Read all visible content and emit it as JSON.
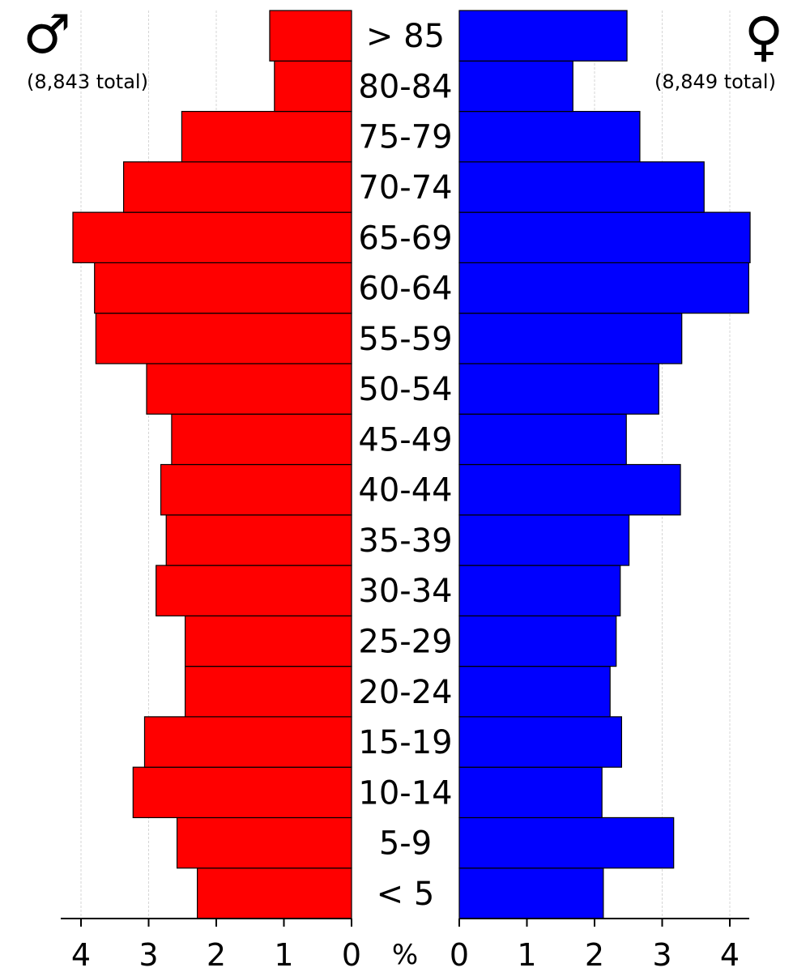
{
  "chart_data": {
    "type": "bar",
    "categories": [
      "< 5",
      "5-9",
      "10-14",
      "15-19",
      "20-24",
      "25-29",
      "30-34",
      "35-39",
      "40-44",
      "45-49",
      "50-54",
      "55-59",
      "60-64",
      "65-69",
      "70-74",
      "75-79",
      "80-84",
      "> 85"
    ],
    "series": [
      {
        "name": "male",
        "color": "#ff0000",
        "values": [
          2.28,
          2.58,
          3.23,
          3.06,
          2.46,
          2.46,
          2.89,
          2.74,
          2.82,
          2.66,
          3.03,
          3.78,
          3.8,
          4.12,
          3.37,
          2.51,
          1.14,
          1.21
        ]
      },
      {
        "name": "female",
        "color": "#0000ff",
        "values": [
          2.13,
          3.17,
          2.11,
          2.4,
          2.23,
          2.32,
          2.38,
          2.51,
          3.27,
          2.47,
          2.95,
          3.29,
          4.28,
          4.3,
          3.62,
          2.67,
          1.68,
          2.48
        ]
      }
    ],
    "male_symbol": "♂",
    "female_symbol": "♀",
    "male_total": "(8,843 total)",
    "female_total": "(8,849 total)",
    "center_axis_label": "%",
    "x_ticks": [
      "0",
      "1",
      "2",
      "3",
      "4"
    ],
    "xlim": [
      0,
      4.3
    ],
    "grid": true
  }
}
